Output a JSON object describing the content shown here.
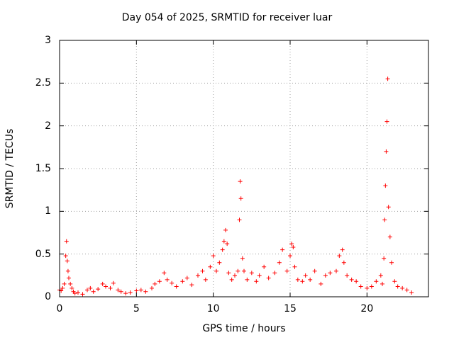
{
  "chart_data": {
    "type": "scatter",
    "title": "Day 054 of 2025, SRMTID for receiver luar",
    "xlabel": "GPS time / hours",
    "ylabel": "SRMTID / TECUs",
    "xlim": [
      0,
      24
    ],
    "ylim": [
      0,
      3
    ],
    "xticks": [
      0,
      5,
      10,
      15,
      20
    ],
    "xtick_labels": [
      "0",
      "5",
      "10",
      "15",
      "20"
    ],
    "yticks": [
      0,
      0.5,
      1,
      1.5,
      2,
      2.5,
      3
    ],
    "ytick_labels": [
      "0",
      "0.5",
      "1",
      "1.5",
      "2",
      "2.5",
      "3"
    ],
    "grid": true,
    "marker": "+",
    "color": "#ff0000",
    "series": [
      {
        "name": "SRMTID",
        "x": [
          0.0,
          0.1,
          0.2,
          0.3,
          0.4,
          0.45,
          0.5,
          0.55,
          0.6,
          0.7,
          0.8,
          0.9,
          1.0,
          1.2,
          1.5,
          1.8,
          2.0,
          2.2,
          2.5,
          2.8,
          3.0,
          3.3,
          3.5,
          3.8,
          4.0,
          4.3,
          4.6,
          5.0,
          5.3,
          5.6,
          6.0,
          6.2,
          6.5,
          6.8,
          7.0,
          7.3,
          7.6,
          8.0,
          8.3,
          8.6,
          9.0,
          9.3,
          9.5,
          9.8,
          10.0,
          10.2,
          10.4,
          10.6,
          10.7,
          10.8,
          10.9,
          11.0,
          11.2,
          11.4,
          11.6,
          11.7,
          11.75,
          11.8,
          11.9,
          12.0,
          12.2,
          12.5,
          12.8,
          13.0,
          13.3,
          13.6,
          14.0,
          14.3,
          14.5,
          14.8,
          15.0,
          15.1,
          15.2,
          15.3,
          15.5,
          15.8,
          16.0,
          16.3,
          16.6,
          17.0,
          17.3,
          17.6,
          18.0,
          18.2,
          18.4,
          18.5,
          18.7,
          19.0,
          19.3,
          19.6,
          20.0,
          20.3,
          20.6,
          20.9,
          21.0,
          21.1,
          21.15,
          21.2,
          21.25,
          21.3,
          21.35,
          21.4,
          21.5,
          21.6,
          21.8,
          22.0,
          22.3,
          22.6,
          22.9
        ],
        "y": [
          0.08,
          0.07,
          0.1,
          0.15,
          0.48,
          0.65,
          0.42,
          0.3,
          0.22,
          0.15,
          0.1,
          0.06,
          0.04,
          0.05,
          0.03,
          0.08,
          0.1,
          0.06,
          0.09,
          0.15,
          0.12,
          0.1,
          0.16,
          0.08,
          0.06,
          0.04,
          0.05,
          0.07,
          0.08,
          0.06,
          0.1,
          0.15,
          0.18,
          0.28,
          0.2,
          0.16,
          0.12,
          0.18,
          0.22,
          0.14,
          0.25,
          0.3,
          0.2,
          0.35,
          0.48,
          0.3,
          0.4,
          0.55,
          0.65,
          0.78,
          0.62,
          0.28,
          0.2,
          0.25,
          0.3,
          0.9,
          1.35,
          1.15,
          0.45,
          0.3,
          0.2,
          0.28,
          0.18,
          0.25,
          0.35,
          0.22,
          0.28,
          0.4,
          0.55,
          0.3,
          0.48,
          0.62,
          0.58,
          0.35,
          0.2,
          0.18,
          0.25,
          0.2,
          0.3,
          0.15,
          0.25,
          0.28,
          0.3,
          0.48,
          0.55,
          0.4,
          0.25,
          0.2,
          0.18,
          0.12,
          0.1,
          0.12,
          0.18,
          0.25,
          0.15,
          0.45,
          0.9,
          1.3,
          1.7,
          2.05,
          2.55,
          1.05,
          0.7,
          0.4,
          0.18,
          0.12,
          0.1,
          0.08,
          0.05
        ]
      }
    ]
  }
}
